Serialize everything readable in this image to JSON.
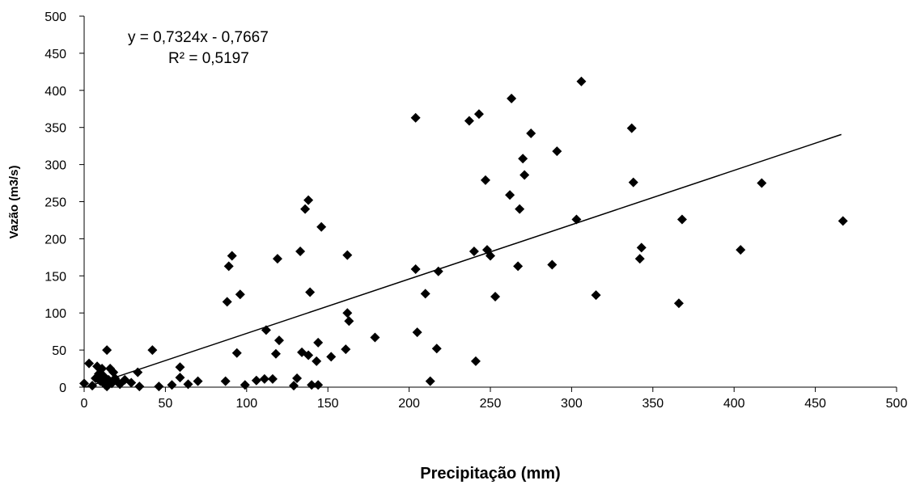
{
  "chart_data": {
    "type": "scatter",
    "title": "",
    "xlabel": "Precipitação (mm)",
    "ylabel": "Vazão (m3/s)",
    "xlim": [
      0,
      500
    ],
    "ylim": [
      0,
      500
    ],
    "xticks": [
      0,
      50,
      100,
      150,
      200,
      250,
      300,
      350,
      400,
      450,
      500
    ],
    "yticks": [
      0,
      50,
      100,
      150,
      200,
      250,
      300,
      350,
      400,
      450,
      500
    ],
    "grid": false,
    "legend": "none",
    "marker": "diamond",
    "marker_color": "#000000",
    "trendline": {
      "type": "linear",
      "slope": 0.7324,
      "intercept": -0.7667,
      "x_range": [
        0,
        466
      ],
      "equation_label": "y = 0,7324x  - 0,7667",
      "r2_label": "R² = 0,5197"
    },
    "points": [
      [
        0,
        5
      ],
      [
        3,
        32
      ],
      [
        5,
        2
      ],
      [
        7,
        12
      ],
      [
        8,
        28
      ],
      [
        9,
        18
      ],
      [
        10,
        8
      ],
      [
        11,
        25
      ],
      [
        12,
        15
      ],
      [
        13,
        3
      ],
      [
        14,
        50
      ],
      [
        14,
        1
      ],
      [
        15,
        10
      ],
      [
        16,
        25
      ],
      [
        17,
        5
      ],
      [
        18,
        20
      ],
      [
        19,
        12
      ],
      [
        20,
        8
      ],
      [
        22,
        4
      ],
      [
        25,
        10
      ],
      [
        29,
        6
      ],
      [
        33,
        20
      ],
      [
        34,
        1
      ],
      [
        42,
        50
      ],
      [
        46,
        1
      ],
      [
        54,
        3
      ],
      [
        59,
        27
      ],
      [
        59,
        13
      ],
      [
        64,
        4
      ],
      [
        70,
        8
      ],
      [
        87,
        8
      ],
      [
        88,
        115
      ],
      [
        89,
        163
      ],
      [
        91,
        177
      ],
      [
        94,
        46
      ],
      [
        96,
        125
      ],
      [
        99,
        3
      ],
      [
        106,
        9
      ],
      [
        111,
        11
      ],
      [
        112,
        77
      ],
      [
        116,
        11
      ],
      [
        118,
        45
      ],
      [
        119,
        173
      ],
      [
        120,
        63
      ],
      [
        129,
        2
      ],
      [
        131,
        12
      ],
      [
        133,
        183
      ],
      [
        134,
        47
      ],
      [
        136,
        240
      ],
      [
        138,
        43
      ],
      [
        138,
        252
      ],
      [
        139,
        128
      ],
      [
        140,
        3
      ],
      [
        143,
        35
      ],
      [
        144,
        60
      ],
      [
        144,
        3
      ],
      [
        146,
        216
      ],
      [
        152,
        41
      ],
      [
        161,
        51
      ],
      [
        162,
        100
      ],
      [
        162,
        178
      ],
      [
        163,
        89
      ],
      [
        179,
        67
      ],
      [
        204,
        363
      ],
      [
        204,
        159
      ],
      [
        205,
        74
      ],
      [
        210,
        126
      ],
      [
        213,
        8
      ],
      [
        217,
        52
      ],
      [
        218,
        156
      ],
      [
        237,
        359
      ],
      [
        240,
        183
      ],
      [
        241,
        35
      ],
      [
        243,
        368
      ],
      [
        247,
        279
      ],
      [
        248,
        185
      ],
      [
        250,
        177
      ],
      [
        253,
        122
      ],
      [
        262,
        259
      ],
      [
        263,
        389
      ],
      [
        267,
        163
      ],
      [
        268,
        240
      ],
      [
        270,
        308
      ],
      [
        271,
        286
      ],
      [
        275,
        342
      ],
      [
        288,
        165
      ],
      [
        291,
        318
      ],
      [
        303,
        226
      ],
      [
        306,
        412
      ],
      [
        315,
        124
      ],
      [
        337,
        349
      ],
      [
        338,
        276
      ],
      [
        342,
        173
      ],
      [
        343,
        188
      ],
      [
        366,
        113
      ],
      [
        368,
        226
      ],
      [
        404,
        185
      ],
      [
        417,
        275
      ],
      [
        467,
        224
      ]
    ]
  }
}
